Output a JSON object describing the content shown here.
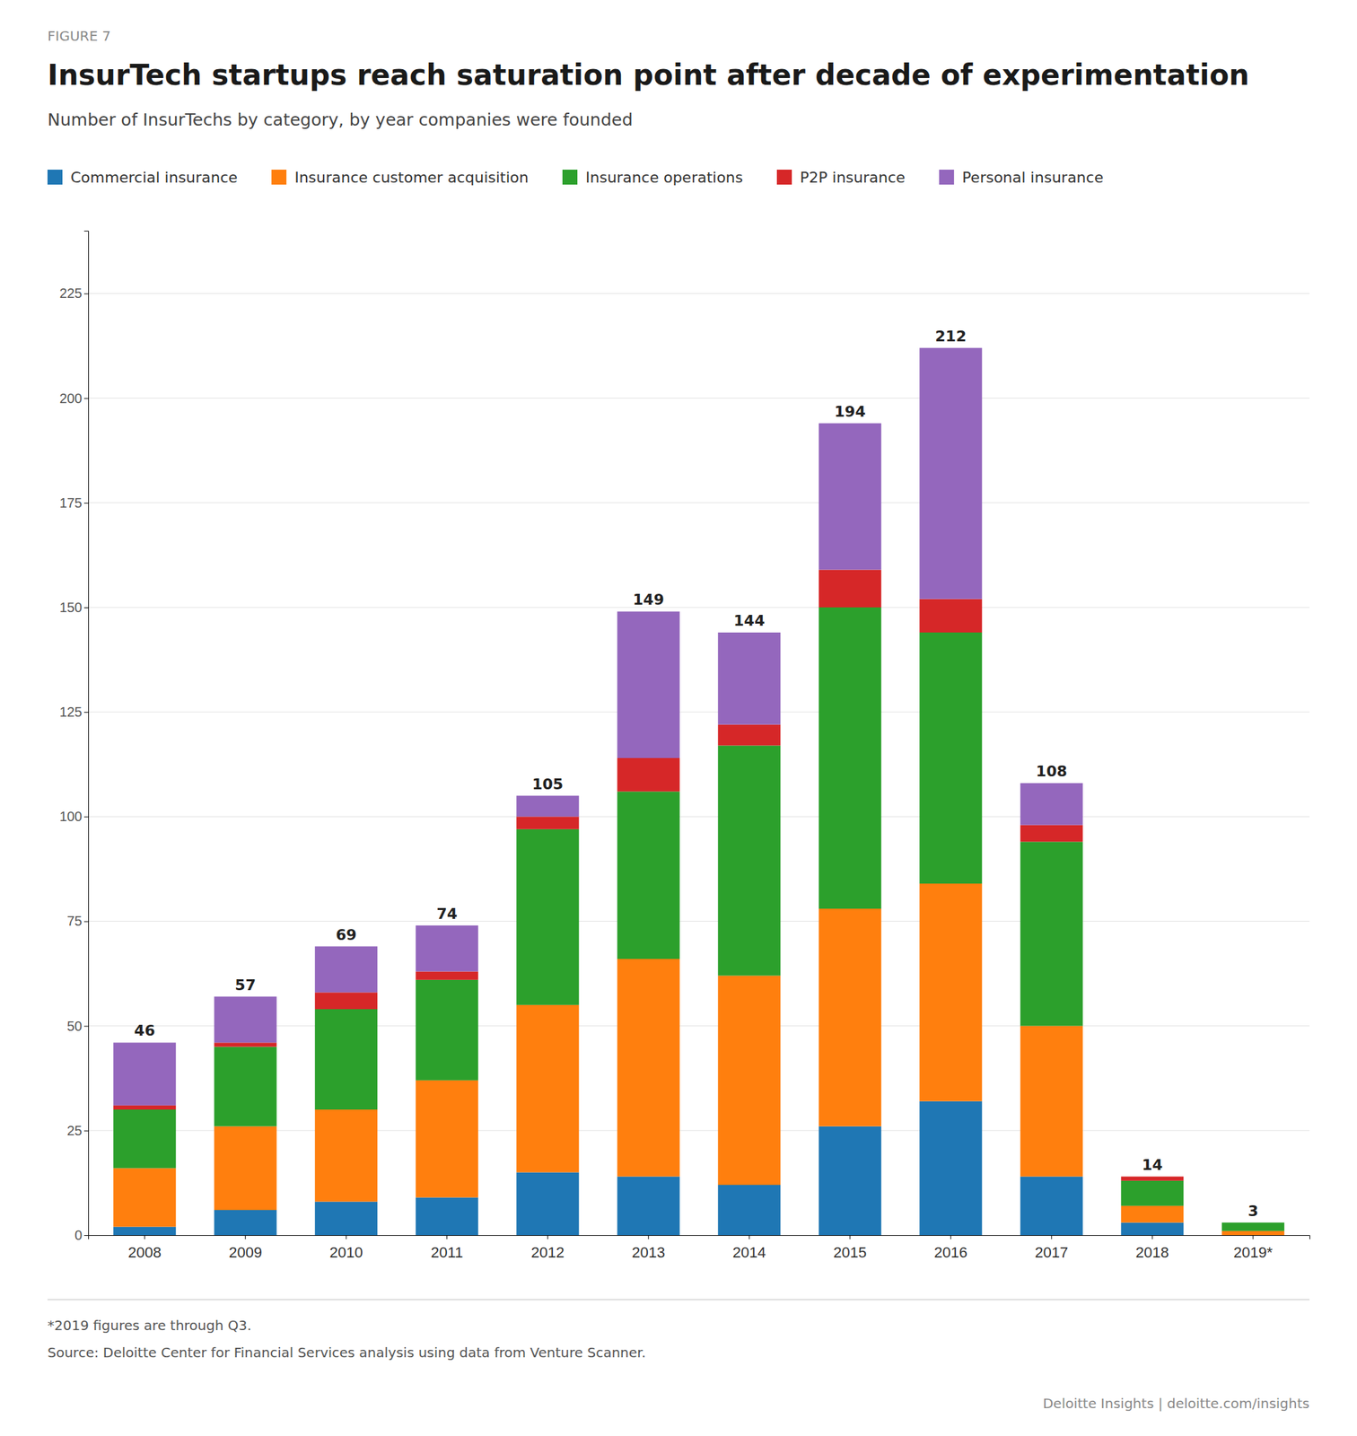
{
  "chart_data": {
    "type": "bar",
    "stacked": true,
    "grid": true,
    "figure_label": "FIGURE 7",
    "title": "InsurTech startups reach saturation point after decade of experimentation",
    "subtitle": "Number of InsurTechs by category, by year companies were founded",
    "categories": [
      "2008",
      "2009",
      "2010",
      "2011",
      "2012",
      "2013",
      "2014",
      "2015",
      "2016",
      "2017",
      "2018",
      "2019*"
    ],
    "series": [
      {
        "name": "Commercial insurance",
        "values": [
          2,
          6,
          8,
          9,
          15,
          14,
          12,
          26,
          32,
          14,
          3,
          0
        ]
      },
      {
        "name": "Insurance customer acquisition",
        "values": [
          14,
          20,
          22,
          28,
          40,
          52,
          50,
          52,
          52,
          36,
          4,
          1
        ]
      },
      {
        "name": "Insurance operations",
        "values": [
          14,
          19,
          24,
          24,
          42,
          40,
          55,
          72,
          60,
          44,
          6,
          2
        ]
      },
      {
        "name": "P2P insurance",
        "values": [
          1,
          1,
          4,
          2,
          3,
          8,
          5,
          9,
          8,
          4,
          1,
          0
        ]
      },
      {
        "name": "Personal insurance",
        "values": [
          15,
          11,
          11,
          11,
          5,
          35,
          22,
          35,
          60,
          10,
          0,
          0
        ]
      }
    ],
    "totals": [
      46,
      57,
      69,
      74,
      105,
      149,
      144,
      194,
      212,
      108,
      14,
      3
    ],
    "ylim": [
      0,
      240
    ],
    "yticks": [
      0,
      25,
      50,
      75,
      100,
      125,
      150,
      175,
      200,
      225
    ],
    "footer_notes": [
      "*2019 figures are through Q3.",
      "Source: Deloitte Center for Financial Services analysis using data from Venture Scanner."
    ],
    "branding": "Deloitte Insights | deloitte.com/insights"
  }
}
